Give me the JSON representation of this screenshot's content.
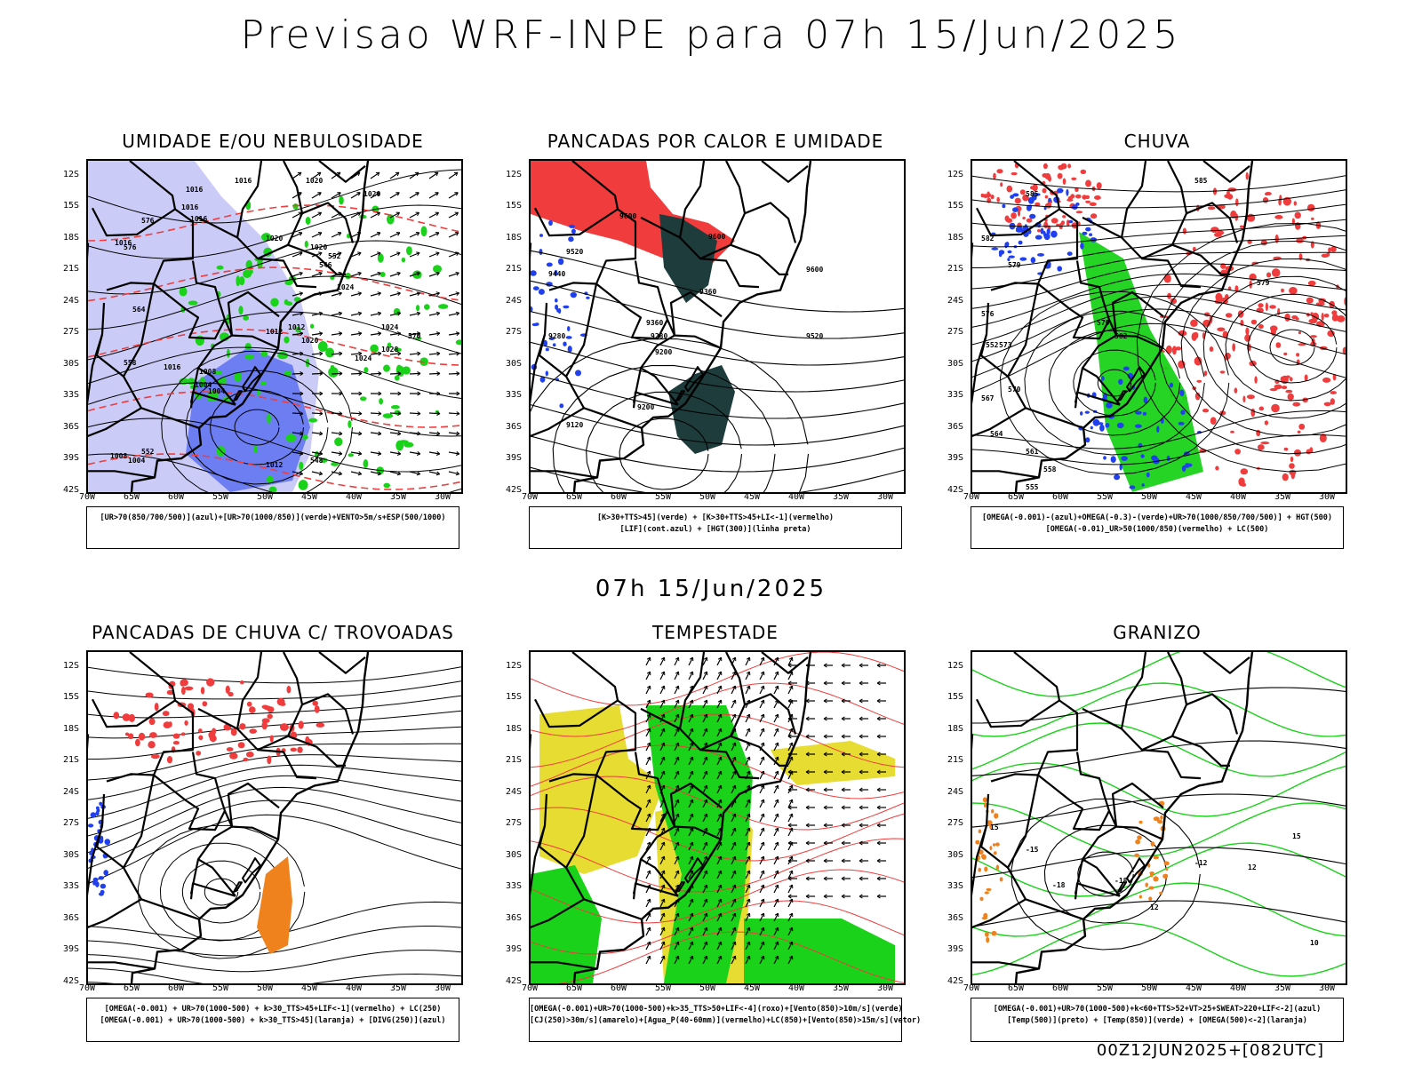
{
  "header": {
    "title": "Previsao WRF-INPE  para 07h 15/Jun/2025",
    "subtitle": "07h 15/Jun/2025",
    "footer": "00Z12JUN2025+[082UTC]"
  },
  "axes": {
    "lat_labels": [
      "12S",
      "15S",
      "18S",
      "21S",
      "24S",
      "27S",
      "30S",
      "33S",
      "36S",
      "39S",
      "42S"
    ],
    "lon_labels": [
      "70W",
      "65W",
      "60W",
      "55W",
      "50W",
      "45W",
      "40W",
      "35W",
      "30W"
    ]
  },
  "colors": {
    "red": "#f03c3c",
    "green": "#19d219",
    "blue": "#2040f0",
    "darkteal": "#1e3c3c",
    "yellow": "#e6dc32",
    "orange": "#f0821e",
    "lavender": "#a0a0f0",
    "purple": "#7050d0"
  },
  "panels": [
    {
      "title": "UMIDADE E/OU NEBULOSIDADE",
      "legend": [
        "[UR>70(850/700/500)](azul)+[UR>70(1000/850)](verde)+VENTO>5m/s+ESP(500/1000)"
      ],
      "labels": [
        "1016",
        "1016",
        "1020",
        "1020",
        "1016",
        "1016",
        "1016",
        "1020",
        "1020",
        "1024",
        "1024",
        "1012",
        "1012",
        "1008",
        "1004",
        "1004",
        "1008",
        "1004",
        "1012",
        "1016",
        "1020",
        "1024",
        "1028",
        "576",
        "576",
        "564",
        "558",
        "552",
        "548",
        "552",
        "570",
        "546"
      ]
    },
    {
      "title": "PANCADAS POR CALOR E UMIDADE",
      "legend": [
        "[K>30+TTS>45](verde) + [K>30+TTS>45+LI<-1](vermelho)",
        "[LIF](cont.azul) + [HGT(300)](linha preta)"
      ],
      "labels": [
        "9600",
        "9600",
        "9520",
        "9440",
        "9360",
        "9280",
        "9200",
        "9120",
        "9200",
        "9520",
        "9600",
        "9360",
        "9280"
      ]
    },
    {
      "title": "CHUVA",
      "legend": [
        "[OMEGA(-0.001)-(azul)+OMEGA(-0.3)-(verde)+UR>70(1000/850/700/500)] + HGT(500)",
        "[OMEGA(-0.01)_UR>50(1000/850)(vermelho) + LC(500)"
      ],
      "labels": [
        "585",
        "585",
        "582",
        "579",
        "576",
        "573",
        "570",
        "567",
        "564",
        "561",
        "558",
        "555",
        "552",
        "579",
        "582",
        "579"
      ]
    },
    {
      "title": "PANCADAS DE CHUVA C/ TROVOADAS",
      "legend": [
        "[OMEGA(-0.001) + UR>70(1000-500) + k>30_TTS>45+LIF<-1](vermelho) + LC(250)",
        "[OMEGA(-0.001) + UR>70(1000-500) + k>30_TTS>45](laranja) + [DIVG(250)](azul)"
      ],
      "labels": []
    },
    {
      "title": "TEMPESTADE",
      "legend": [
        "[OMEGA(-0.001)+UR>70(1000-500)+k>35_TTS>50+LIF<-4](roxo)+[Vento(850)>10m/s](verde)",
        "[CJ(250)>30m/s](amarelo)+[Agua_P(40-60mm)](vermelho)+LC(850)+[Vento(850)>15m/s](vetor)"
      ],
      "labels": []
    },
    {
      "title": "GRANIZO",
      "legend": [
        "[OMEGA(-0.001)+UR>70(1000-500)+k<60+TTS>52+VT>25+SWEAT>220+LIF<-2](azul)",
        "[Temp(500)](preto) + [Temp(850)](verde) + [OMEGA(500)<-2](laranja)"
      ],
      "labels": [
        "-15",
        "-18",
        "-18",
        "-12",
        "12",
        "15",
        "10",
        "15",
        "12"
      ]
    }
  ]
}
